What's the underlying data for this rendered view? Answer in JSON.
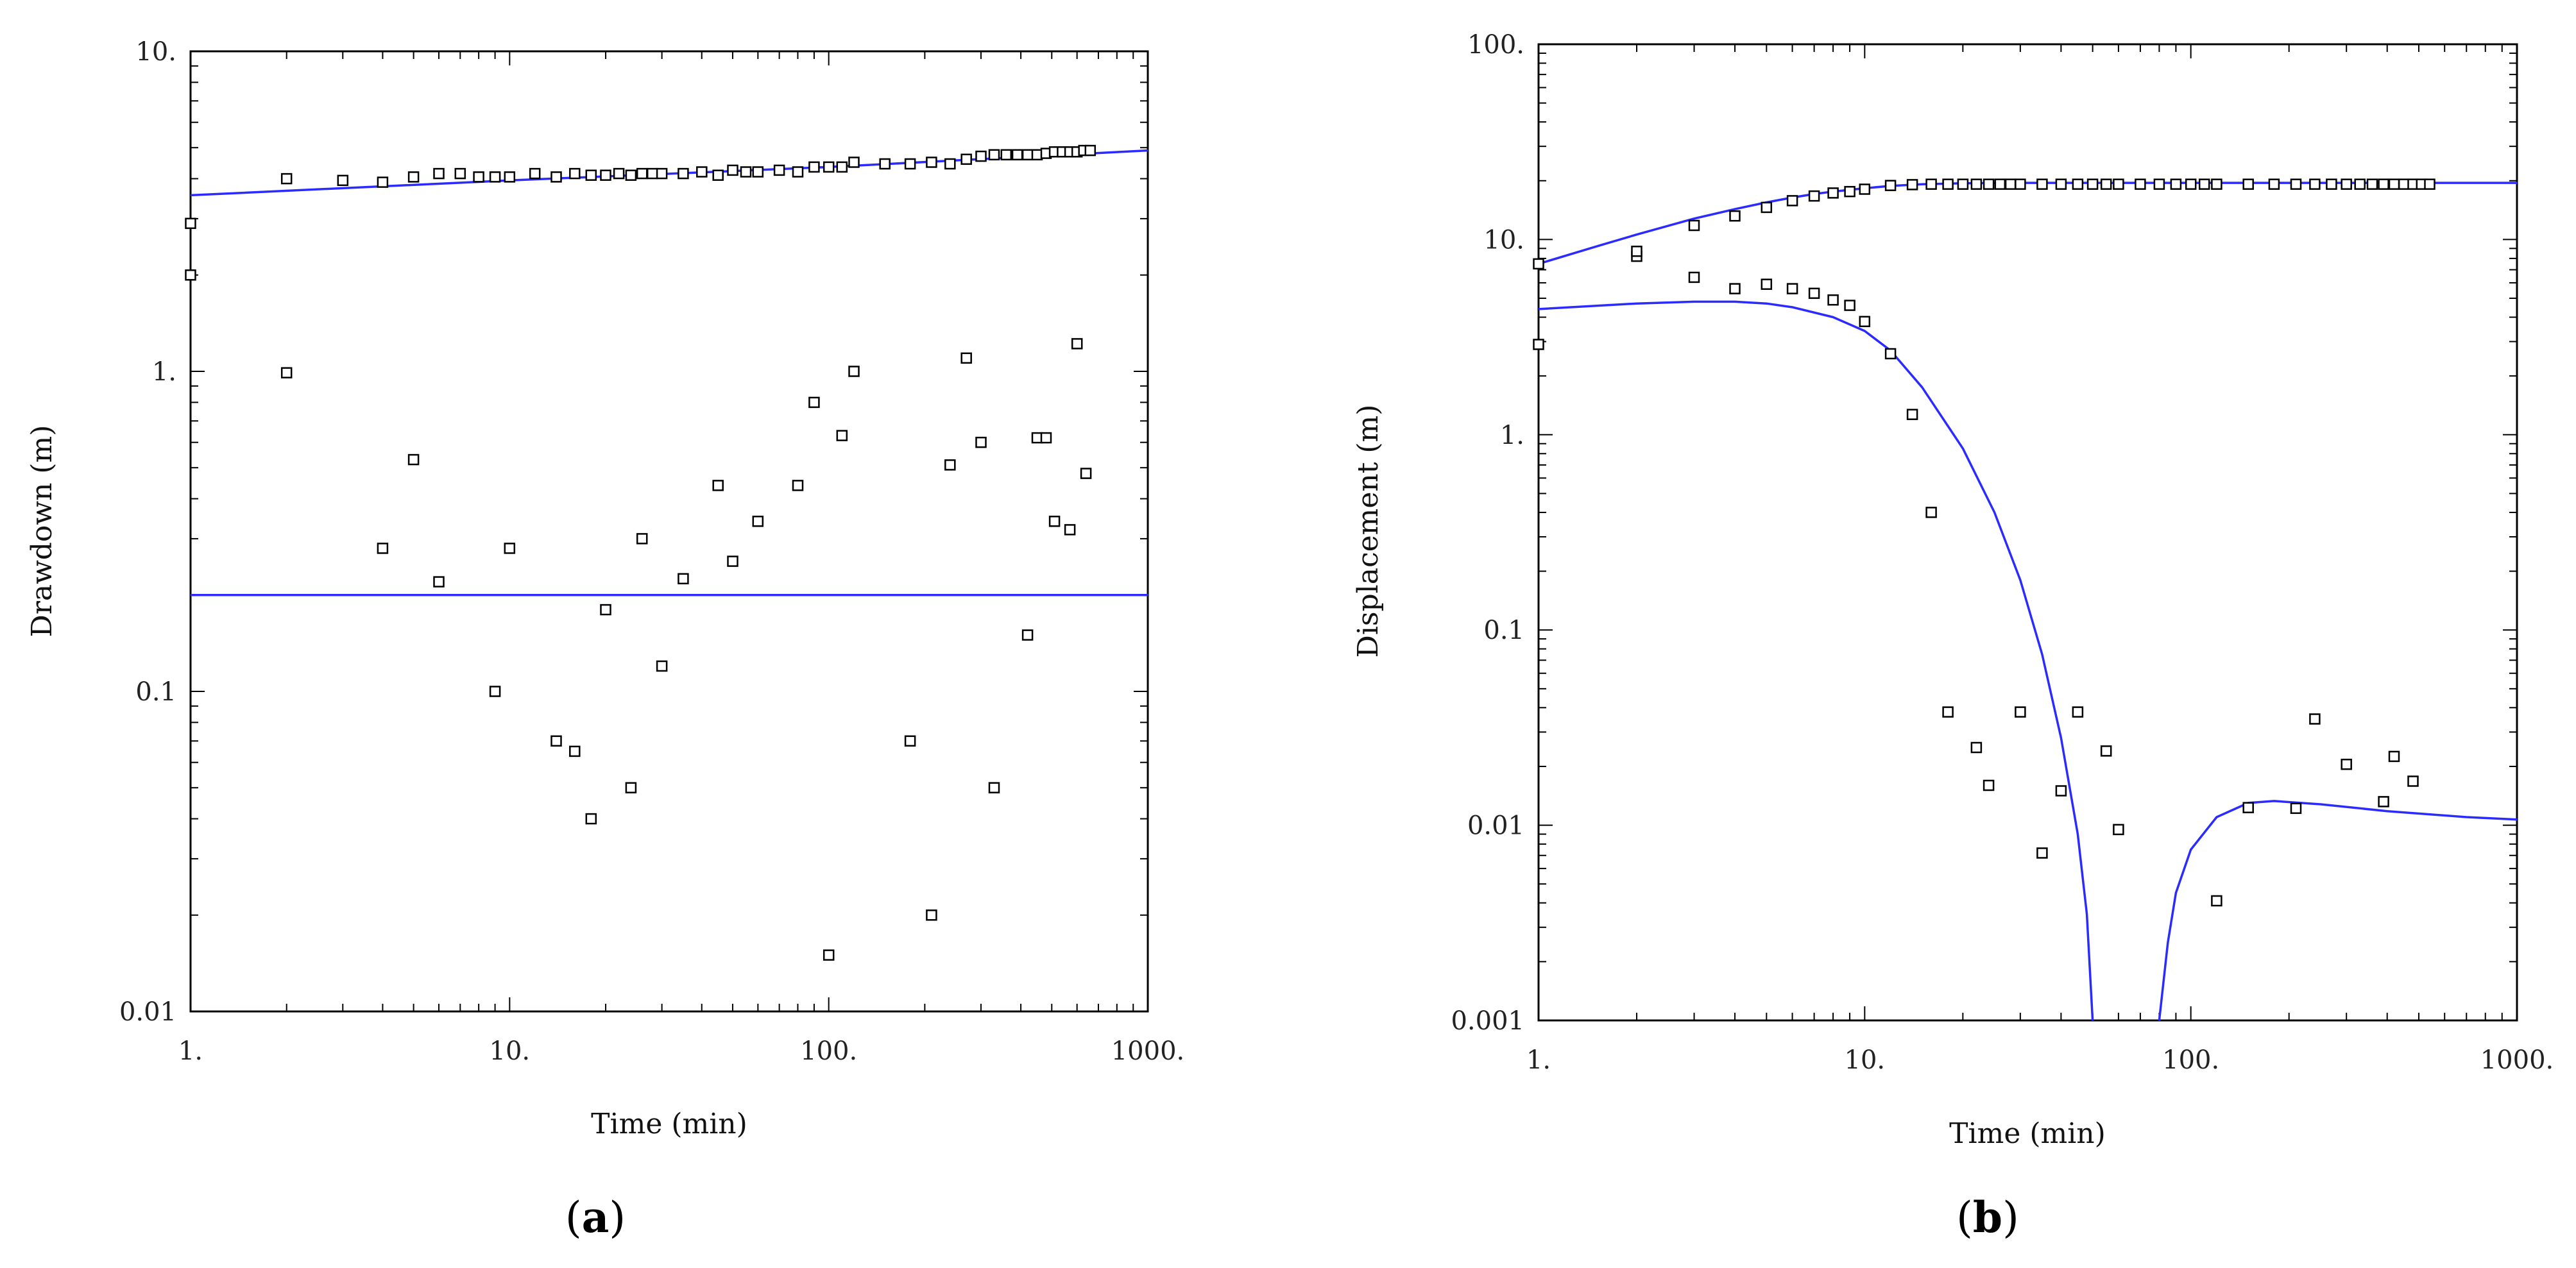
{
  "chart_data": [
    {
      "type": "scatter",
      "id": "a",
      "panel_label_open": "(",
      "panel_label_letter": "a",
      "panel_label_close": ")",
      "xlabel": "Time (min)",
      "ylabel": "Drawdown (m)",
      "x_scale": "log",
      "y_scale": "log",
      "xlim": [
        1,
        1000
      ],
      "ylim": [
        0.01,
        10
      ],
      "x_ticks": [
        {
          "value": 1,
          "label": "1."
        },
        {
          "value": 10,
          "label": "10."
        },
        {
          "value": 100,
          "label": "100."
        },
        {
          "value": 1000,
          "label": "1000."
        }
      ],
      "y_ticks": [
        {
          "value": 0.01,
          "label": "0.01"
        },
        {
          "value": 0.1,
          "label": "0.1"
        },
        {
          "value": 1,
          "label": "1."
        },
        {
          "value": 10,
          "label": "10."
        }
      ],
      "lines": [
        {
          "name": "fit-upper",
          "color": "#2b2bff",
          "x": [
            1,
            10,
            100,
            1000
          ],
          "y": [
            3.55,
            3.95,
            4.35,
            4.9
          ]
        },
        {
          "name": "fit-lower",
          "color": "#2b2bff",
          "x": [
            1,
            1000
          ],
          "y": [
            0.2,
            0.2
          ]
        }
      ],
      "points": [
        {
          "x": 1.0,
          "y": 2.9
        },
        {
          "x": 1.0,
          "y": 2.0
        },
        {
          "x": 2,
          "y": 4.0
        },
        {
          "x": 3,
          "y": 3.95
        },
        {
          "x": 4,
          "y": 3.9
        },
        {
          "x": 5,
          "y": 4.05
        },
        {
          "x": 6,
          "y": 4.15
        },
        {
          "x": 7,
          "y": 4.15
        },
        {
          "x": 8,
          "y": 4.05
        },
        {
          "x": 9,
          "y": 4.05
        },
        {
          "x": 10,
          "y": 4.05
        },
        {
          "x": 12,
          "y": 4.15
        },
        {
          "x": 14,
          "y": 4.05
        },
        {
          "x": 16,
          "y": 4.15
        },
        {
          "x": 18,
          "y": 4.1
        },
        {
          "x": 20,
          "y": 4.1
        },
        {
          "x": 22,
          "y": 4.15
        },
        {
          "x": 24,
          "y": 4.1
        },
        {
          "x": 26,
          "y": 4.15
        },
        {
          "x": 28,
          "y": 4.15
        },
        {
          "x": 30,
          "y": 4.15
        },
        {
          "x": 35,
          "y": 4.15
        },
        {
          "x": 40,
          "y": 4.2
        },
        {
          "x": 45,
          "y": 4.1
        },
        {
          "x": 50,
          "y": 4.25
        },
        {
          "x": 55,
          "y": 4.2
        },
        {
          "x": 60,
          "y": 4.2
        },
        {
          "x": 70,
          "y": 4.25
        },
        {
          "x": 80,
          "y": 4.2
        },
        {
          "x": 90,
          "y": 4.35
        },
        {
          "x": 100,
          "y": 4.35
        },
        {
          "x": 110,
          "y": 4.35
        },
        {
          "x": 120,
          "y": 4.5
        },
        {
          "x": 150,
          "y": 4.45
        },
        {
          "x": 180,
          "y": 4.45
        },
        {
          "x": 210,
          "y": 4.5
        },
        {
          "x": 240,
          "y": 4.45
        },
        {
          "x": 270,
          "y": 4.6
        },
        {
          "x": 300,
          "y": 4.7
        },
        {
          "x": 330,
          "y": 4.75
        },
        {
          "x": 360,
          "y": 4.75
        },
        {
          "x": 390,
          "y": 4.75
        },
        {
          "x": 420,
          "y": 4.75
        },
        {
          "x": 450,
          "y": 4.75
        },
        {
          "x": 480,
          "y": 4.8
        },
        {
          "x": 510,
          "y": 4.85
        },
        {
          "x": 540,
          "y": 4.85
        },
        {
          "x": 570,
          "y": 4.85
        },
        {
          "x": 600,
          "y": 4.85
        },
        {
          "x": 630,
          "y": 4.9
        },
        {
          "x": 660,
          "y": 4.9
        },
        {
          "x": 2,
          "y": 0.99
        },
        {
          "x": 4,
          "y": 0.28
        },
        {
          "x": 5,
          "y": 0.53
        },
        {
          "x": 6,
          "y": 0.22
        },
        {
          "x": 9,
          "y": 0.1
        },
        {
          "x": 10,
          "y": 0.28
        },
        {
          "x": 14,
          "y": 0.07
        },
        {
          "x": 16,
          "y": 0.065
        },
        {
          "x": 18,
          "y": 0.04
        },
        {
          "x": 20,
          "y": 0.18
        },
        {
          "x": 24,
          "y": 0.05
        },
        {
          "x": 26,
          "y": 0.3
        },
        {
          "x": 30,
          "y": 0.12
        },
        {
          "x": 35,
          "y": 0.225
        },
        {
          "x": 45,
          "y": 0.44
        },
        {
          "x": 50,
          "y": 0.255
        },
        {
          "x": 60,
          "y": 0.34
        },
        {
          "x": 80,
          "y": 0.44
        },
        {
          "x": 90,
          "y": 0.8
        },
        {
          "x": 100,
          "y": 0.015
        },
        {
          "x": 110,
          "y": 0.63
        },
        {
          "x": 120,
          "y": 1.0
        },
        {
          "x": 180,
          "y": 0.07
        },
        {
          "x": 210,
          "y": 0.02
        },
        {
          "x": 240,
          "y": 0.51
        },
        {
          "x": 270,
          "y": 1.1
        },
        {
          "x": 300,
          "y": 0.6
        },
        {
          "x": 330,
          "y": 0.05
        },
        {
          "x": 420,
          "y": 0.15
        },
        {
          "x": 450,
          "y": 0.62
        },
        {
          "x": 480,
          "y": 0.62
        },
        {
          "x": 510,
          "y": 0.34
        },
        {
          "x": 570,
          "y": 0.32
        },
        {
          "x": 600,
          "y": 1.22
        },
        {
          "x": 640,
          "y": 0.48
        }
      ]
    },
    {
      "type": "scatter",
      "id": "b",
      "panel_label_open": "(",
      "panel_label_letter": "b",
      "panel_label_close": ")",
      "xlabel": "Time (min)",
      "ylabel": "Displacement (m)",
      "x_scale": "log",
      "y_scale": "log",
      "xlim": [
        1,
        1000
      ],
      "ylim": [
        0.001,
        100
      ],
      "x_ticks": [
        {
          "value": 1,
          "label": "1."
        },
        {
          "value": 10,
          "label": "10."
        },
        {
          "value": 100,
          "label": "100."
        },
        {
          "value": 1000,
          "label": "1000."
        }
      ],
      "y_ticks": [
        {
          "value": 0.001,
          "label": "0.001"
        },
        {
          "value": 0.01,
          "label": "0.01"
        },
        {
          "value": 0.1,
          "label": "0.1"
        },
        {
          "value": 1,
          "label": "1."
        },
        {
          "value": 10,
          "label": "10."
        },
        {
          "value": 100,
          "label": "100."
        }
      ],
      "lines": [
        {
          "name": "fit-upper",
          "color": "#2b2bff",
          "x": [
            1,
            1.5,
            2,
            3,
            4,
            5,
            6,
            7,
            8,
            10,
            12,
            15,
            20,
            30,
            50,
            100,
            1000
          ],
          "y": [
            7.5,
            9.2,
            10.6,
            12.8,
            14.3,
            15.5,
            16.4,
            17.1,
            17.6,
            18.3,
            18.8,
            19.2,
            19.4,
            19.5,
            19.5,
            19.5,
            19.5
          ]
        },
        {
          "name": "fit-lower-left",
          "color": "#2b2bff",
          "x": [
            1,
            2,
            3,
            4,
            5,
            6,
            8,
            10,
            12,
            15,
            20,
            25,
            30,
            35,
            40,
            45,
            48,
            50
          ],
          "y": [
            4.4,
            4.7,
            4.8,
            4.8,
            4.7,
            4.5,
            4.0,
            3.4,
            2.7,
            1.75,
            0.85,
            0.4,
            0.18,
            0.075,
            0.028,
            0.009,
            0.0035,
            0.001
          ]
        },
        {
          "name": "fit-lower-right",
          "color": "#2b2bff",
          "x": [
            80,
            85,
            90,
            100,
            120,
            150,
            180,
            250,
            400,
            700,
            1000
          ],
          "y": [
            0.001,
            0.0025,
            0.0045,
            0.0075,
            0.011,
            0.013,
            0.0133,
            0.0128,
            0.0118,
            0.011,
            0.0107
          ]
        }
      ],
      "points": [
        {
          "x": 1.0,
          "y": 7.5
        },
        {
          "x": 1.0,
          "y": 2.9
        },
        {
          "x": 2,
          "y": 8.2
        },
        {
          "x": 2,
          "y": 8.7
        },
        {
          "x": 3,
          "y": 11.8
        },
        {
          "x": 4,
          "y": 13.2
        },
        {
          "x": 5,
          "y": 14.6
        },
        {
          "x": 6,
          "y": 15.8
        },
        {
          "x": 7,
          "y": 16.7
        },
        {
          "x": 8,
          "y": 17.3
        },
        {
          "x": 9,
          "y": 17.6
        },
        {
          "x": 10,
          "y": 18.1
        },
        {
          "x": 12,
          "y": 18.9
        },
        {
          "x": 14,
          "y": 19.1
        },
        {
          "x": 16,
          "y": 19.2
        },
        {
          "x": 18,
          "y": 19.2
        },
        {
          "x": 20,
          "y": 19.2
        },
        {
          "x": 22,
          "y": 19.2
        },
        {
          "x": 24,
          "y": 19.2
        },
        {
          "x": 26,
          "y": 19.2
        },
        {
          "x": 28,
          "y": 19.2
        },
        {
          "x": 30,
          "y": 19.2
        },
        {
          "x": 35,
          "y": 19.2
        },
        {
          "x": 40,
          "y": 19.2
        },
        {
          "x": 45,
          "y": 19.2
        },
        {
          "x": 50,
          "y": 19.2
        },
        {
          "x": 55,
          "y": 19.2
        },
        {
          "x": 60,
          "y": 19.2
        },
        {
          "x": 70,
          "y": 19.2
        },
        {
          "x": 80,
          "y": 19.2
        },
        {
          "x": 90,
          "y": 19.2
        },
        {
          "x": 100,
          "y": 19.2
        },
        {
          "x": 110,
          "y": 19.2
        },
        {
          "x": 120,
          "y": 19.2
        },
        {
          "x": 150,
          "y": 19.2
        },
        {
          "x": 180,
          "y": 19.2
        },
        {
          "x": 210,
          "y": 19.2
        },
        {
          "x": 240,
          "y": 19.2
        },
        {
          "x": 270,
          "y": 19.2
        },
        {
          "x": 300,
          "y": 19.2
        },
        {
          "x": 330,
          "y": 19.2
        },
        {
          "x": 360,
          "y": 19.2
        },
        {
          "x": 390,
          "y": 19.2
        },
        {
          "x": 420,
          "y": 19.2
        },
        {
          "x": 450,
          "y": 19.2
        },
        {
          "x": 480,
          "y": 19.2
        },
        {
          "x": 510,
          "y": 19.2
        },
        {
          "x": 540,
          "y": 19.2
        },
        {
          "x": 3,
          "y": 6.4
        },
        {
          "x": 4,
          "y": 5.6
        },
        {
          "x": 5,
          "y": 5.9
        },
        {
          "x": 6,
          "y": 5.6
        },
        {
          "x": 7,
          "y": 5.3
        },
        {
          "x": 8,
          "y": 4.9
        },
        {
          "x": 9,
          "y": 4.6
        },
        {
          "x": 10,
          "y": 3.8
        },
        {
          "x": 12,
          "y": 2.6
        },
        {
          "x": 14,
          "y": 1.27
        },
        {
          "x": 16,
          "y": 0.4
        },
        {
          "x": 18,
          "y": 0.038
        },
        {
          "x": 22,
          "y": 0.025
        },
        {
          "x": 24,
          "y": 0.016
        },
        {
          "x": 30,
          "y": 0.038
        },
        {
          "x": 35,
          "y": 0.0072
        },
        {
          "x": 40,
          "y": 0.015
        },
        {
          "x": 45,
          "y": 0.038
        },
        {
          "x": 55,
          "y": 0.024
        },
        {
          "x": 60,
          "y": 0.0095
        },
        {
          "x": 120,
          "y": 0.0041
        },
        {
          "x": 150,
          "y": 0.0123
        },
        {
          "x": 210,
          "y": 0.0122
        },
        {
          "x": 240,
          "y": 0.035
        },
        {
          "x": 300,
          "y": 0.0205
        },
        {
          "x": 390,
          "y": 0.0132
        },
        {
          "x": 420,
          "y": 0.0225
        },
        {
          "x": 480,
          "y": 0.0168
        }
      ]
    }
  ]
}
